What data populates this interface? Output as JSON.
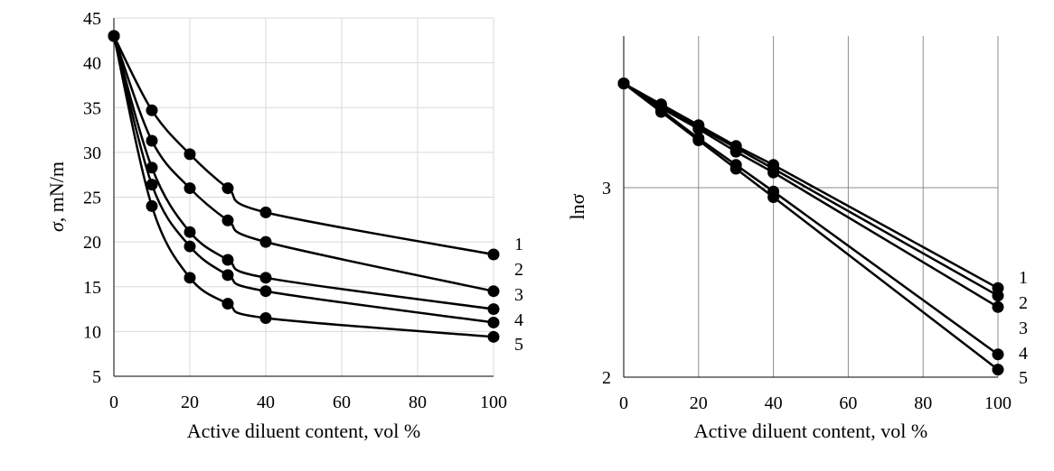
{
  "chart_data": [
    {
      "type": "line",
      "title": "",
      "xlabel": "Active diluent content, vol %",
      "ylabel_symbol": "σ",
      "ylabel_rest": ", mN/m",
      "xlim": [
        0,
        100
      ],
      "ylim": [
        5,
        45
      ],
      "xticks": [
        0,
        20,
        40,
        60,
        80,
        100
      ],
      "yticks": [
        5,
        10,
        15,
        20,
        25,
        30,
        35,
        40,
        45
      ],
      "grid": "both",
      "smooth": true,
      "x": [
        0,
        10,
        20,
        30,
        40,
        100
      ],
      "series": [
        {
          "name": "1",
          "values": [
            43,
            34.7,
            29.8,
            26.0,
            23.3,
            18.6
          ]
        },
        {
          "name": "2",
          "values": [
            43,
            31.3,
            26.0,
            22.4,
            20.0,
            14.5
          ]
        },
        {
          "name": "3",
          "values": [
            43,
            28.3,
            21.1,
            18.0,
            16.0,
            12.5
          ]
        },
        {
          "name": "4",
          "values": [
            43,
            26.4,
            19.5,
            16.3,
            14.5,
            11.0
          ]
        },
        {
          "name": "5",
          "values": [
            43,
            24.0,
            16.0,
            13.1,
            11.5,
            9.4
          ]
        }
      ],
      "series_labels": [
        "1",
        "2",
        "3",
        "4",
        "5"
      ]
    },
    {
      "type": "line",
      "title": "",
      "xlabel": "Active diluent content, vol %",
      "ylabel_symbol": "lnσ",
      "ylabel_rest": "",
      "xlim": [
        0,
        100
      ],
      "ylim": [
        2,
        3.8
      ],
      "xticks": [
        0,
        20,
        40,
        60,
        80,
        100
      ],
      "yticks": [
        2,
        3
      ],
      "grid": "both",
      "smooth": false,
      "x": [
        0,
        10,
        20,
        30,
        40,
        100
      ],
      "series": [
        {
          "name": "1",
          "values": [
            3.55,
            3.44,
            3.33,
            3.22,
            3.12,
            2.47
          ]
        },
        {
          "name": "2",
          "values": [
            3.55,
            3.43,
            3.32,
            3.21,
            3.1,
            2.43
          ]
        },
        {
          "name": "3",
          "values": [
            3.55,
            3.42,
            3.31,
            3.19,
            3.08,
            2.37
          ]
        },
        {
          "name": "4",
          "values": [
            3.55,
            3.41,
            3.26,
            3.12,
            2.98,
            2.12
          ]
        },
        {
          "name": "5",
          "values": [
            3.55,
            3.4,
            3.25,
            3.1,
            2.95,
            2.04
          ]
        }
      ],
      "series_labels": [
        "1",
        "2",
        "3",
        "4",
        "5"
      ]
    }
  ]
}
